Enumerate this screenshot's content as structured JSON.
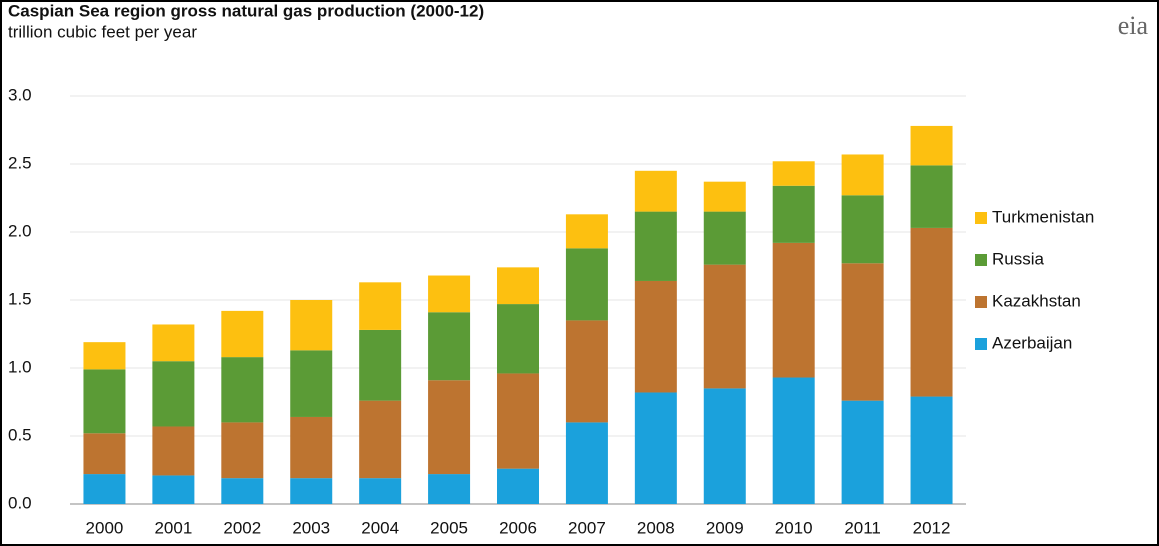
{
  "chart_data": {
    "type": "stacked-bar",
    "title": "Caspian Sea region gross natural  gas production (2000-12)",
    "subtitle": "trillion cubic feet per year",
    "logo": "eia",
    "categories": [
      "2000",
      "2001",
      "2002",
      "2003",
      "2004",
      "2005",
      "2006",
      "2007",
      "2008",
      "2009",
      "2010",
      "2011",
      "2012"
    ],
    "series": [
      {
        "name": "Azerbaijan",
        "color": "#1ba1dc",
        "values": [
          0.22,
          0.21,
          0.19,
          0.19,
          0.19,
          0.22,
          0.26,
          0.6,
          0.82,
          0.85,
          0.93,
          0.76,
          0.79
        ]
      },
      {
        "name": "Kazakhstan",
        "color": "#bd7430",
        "values": [
          0.3,
          0.36,
          0.41,
          0.45,
          0.57,
          0.69,
          0.7,
          0.75,
          0.82,
          0.91,
          0.99,
          1.01,
          1.24
        ]
      },
      {
        "name": "Russia",
        "color": "#5b9b36",
        "values": [
          0.47,
          0.48,
          0.48,
          0.49,
          0.52,
          0.5,
          0.51,
          0.53,
          0.51,
          0.39,
          0.42,
          0.5,
          0.46
        ]
      },
      {
        "name": "Turkmenistan",
        "color": "#fdc010",
        "values": [
          0.2,
          0.27,
          0.34,
          0.37,
          0.35,
          0.27,
          0.27,
          0.25,
          0.3,
          0.22,
          0.18,
          0.3,
          0.29
        ]
      }
    ],
    "ylim": [
      0,
      3.0
    ],
    "yticks": [
      {
        "value": 0,
        "label": "0.0"
      },
      0.5,
      {
        "value": 1,
        "label": "1.0"
      },
      1.5,
      {
        "value": 2,
        "label": "2.0"
      },
      2.5,
      {
        "value": 3,
        "label": "3.0"
      }
    ],
    "grid": true,
    "legend": "right"
  }
}
